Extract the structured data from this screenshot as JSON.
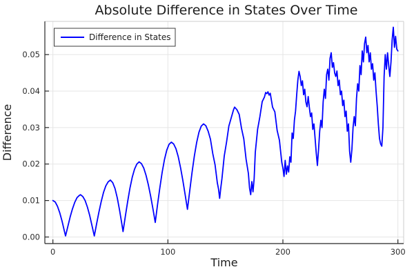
{
  "chart_data": {
    "type": "line",
    "title": "Absolute Difference in States Over Time",
    "xlabel": "Time",
    "ylabel": "Difference",
    "x_ticks": [
      0,
      100,
      200,
      300
    ],
    "y_ticks": [
      0.0,
      0.01,
      0.02,
      0.03,
      0.04,
      0.05
    ],
    "y_tick_labels": [
      "0.00",
      "0.01",
      "0.02",
      "0.03",
      "0.04",
      "0.05"
    ],
    "xlim": [
      -7,
      305
    ],
    "ylim": [
      -0.0018,
      0.0591
    ],
    "grid": true,
    "legend_position": "top-left",
    "colors": {
      "series": "#0000ff",
      "grid": "#e5e5e5",
      "axis": "#262626",
      "frame_light": "#cccccc",
      "background": "#ffffff",
      "legend_border": "#3c3c3c"
    },
    "series": [
      {
        "name": "Difference in States",
        "color": "#0000ff",
        "points": [
          [
            0,
            0.01
          ],
          [
            2,
            0.0096
          ],
          [
            4,
            0.0084
          ],
          [
            6,
            0.0066
          ],
          [
            8,
            0.0043
          ],
          [
            10,
            0.0016
          ],
          [
            11,
            0.0003
          ],
          [
            13,
            0.0029
          ],
          [
            15,
            0.0055
          ],
          [
            17,
            0.0077
          ],
          [
            19,
            0.0095
          ],
          [
            21,
            0.0108
          ],
          [
            23,
            0.0114
          ],
          [
            24,
            0.0116
          ],
          [
            26,
            0.0111
          ],
          [
            28,
            0.01
          ],
          [
            30,
            0.0082
          ],
          [
            32,
            0.0059
          ],
          [
            34,
            0.0031
          ],
          [
            36,
            0.0003
          ],
          [
            38,
            0.0036
          ],
          [
            40,
            0.0068
          ],
          [
            42,
            0.0097
          ],
          [
            44,
            0.0122
          ],
          [
            46,
            0.014
          ],
          [
            48,
            0.0151
          ],
          [
            50,
            0.0156
          ],
          [
            52,
            0.0149
          ],
          [
            54,
            0.0133
          ],
          [
            56,
            0.0107
          ],
          [
            58,
            0.0073
          ],
          [
            60,
            0.0035
          ],
          [
            61,
            0.0015
          ],
          [
            63,
            0.0057
          ],
          [
            65,
            0.0097
          ],
          [
            67,
            0.0134
          ],
          [
            69,
            0.0164
          ],
          [
            71,
            0.0186
          ],
          [
            73,
            0.02
          ],
          [
            75,
            0.0206
          ],
          [
            77,
            0.0201
          ],
          [
            79,
            0.0189
          ],
          [
            81,
            0.0169
          ],
          [
            83,
            0.0143
          ],
          [
            85,
            0.0112
          ],
          [
            87,
            0.0077
          ],
          [
            89,
            0.004
          ],
          [
            91,
            0.0089
          ],
          [
            93,
            0.0135
          ],
          [
            95,
            0.0177
          ],
          [
            97,
            0.0212
          ],
          [
            99,
            0.0238
          ],
          [
            101,
            0.0254
          ],
          [
            103,
            0.026
          ],
          [
            105,
            0.0255
          ],
          [
            107,
            0.0242
          ],
          [
            109,
            0.022
          ],
          [
            111,
            0.019
          ],
          [
            113,
            0.0155
          ],
          [
            115,
            0.0116
          ],
          [
            117,
            0.0076
          ],
          [
            119,
            0.0127
          ],
          [
            121,
            0.0177
          ],
          [
            123,
            0.0222
          ],
          [
            125,
            0.0259
          ],
          [
            127,
            0.0287
          ],
          [
            129,
            0.0304
          ],
          [
            131,
            0.031
          ],
          [
            133,
            0.0305
          ],
          [
            135,
            0.029
          ],
          [
            137,
            0.0268
          ],
          [
            139,
            0.0229
          ],
          [
            141,
            0.0198
          ],
          [
            143,
            0.0148
          ],
          [
            144,
            0.0132
          ],
          [
            145,
            0.0106
          ],
          [
            146,
            0.0135
          ],
          [
            147,
            0.016
          ],
          [
            149,
            0.0222
          ],
          [
            151,
            0.026
          ],
          [
            153,
            0.0304
          ],
          [
            155,
            0.0326
          ],
          [
            157,
            0.0348
          ],
          [
            158,
            0.0356
          ],
          [
            160,
            0.0349
          ],
          [
            162,
            0.0336
          ],
          [
            164,
            0.0298
          ],
          [
            166,
            0.0269
          ],
          [
            168,
            0.0213
          ],
          [
            170,
            0.0174
          ],
          [
            171,
            0.0134
          ],
          [
            172,
            0.0116
          ],
          [
            173,
            0.0152
          ],
          [
            174,
            0.0124
          ],
          [
            175,
            0.016
          ],
          [
            176,
            0.0232
          ],
          [
            178,
            0.0295
          ],
          [
            180,
            0.033
          ],
          [
            182,
            0.0371
          ],
          [
            184,
            0.0384
          ],
          [
            185,
            0.0396
          ],
          [
            186,
            0.0393
          ],
          [
            187,
            0.0398
          ],
          [
            188,
            0.0389
          ],
          [
            189,
            0.0394
          ],
          [
            191,
            0.0356
          ],
          [
            193,
            0.0343
          ],
          [
            195,
            0.0292
          ],
          [
            197,
            0.0265
          ],
          [
            199,
            0.0205
          ],
          [
            200,
            0.0189
          ],
          [
            201,
            0.0166
          ],
          [
            202,
            0.021
          ],
          [
            203,
            0.0172
          ],
          [
            204,
            0.0195
          ],
          [
            205,
            0.0178
          ],
          [
            206,
            0.022
          ],
          [
            207,
            0.0205
          ],
          [
            208,
            0.0285
          ],
          [
            209,
            0.027
          ],
          [
            210,
            0.032
          ],
          [
            211,
            0.0345
          ],
          [
            212,
            0.039
          ],
          [
            213,
            0.043
          ],
          [
            214,
            0.0454
          ],
          [
            215,
            0.044
          ],
          [
            216,
            0.0415
          ],
          [
            217,
            0.0428
          ],
          [
            218,
            0.039
          ],
          [
            219,
            0.0405
          ],
          [
            220,
            0.037
          ],
          [
            221,
            0.0357
          ],
          [
            222,
            0.0385
          ],
          [
            223,
            0.0355
          ],
          [
            224,
            0.033
          ],
          [
            225,
            0.034
          ],
          [
            226,
            0.0295
          ],
          [
            227,
            0.031
          ],
          [
            228,
            0.027
          ],
          [
            229,
            0.023
          ],
          [
            230,
            0.0196
          ],
          [
            231,
            0.024
          ],
          [
            232,
            0.029
          ],
          [
            233,
            0.032
          ],
          [
            234,
            0.03
          ],
          [
            235,
            0.037
          ],
          [
            236,
            0.0405
          ],
          [
            237,
            0.038
          ],
          [
            238,
            0.0445
          ],
          [
            239,
            0.046
          ],
          [
            240,
            0.043
          ],
          [
            241,
            0.049
          ],
          [
            242,
            0.0505
          ],
          [
            243,
            0.0465
          ],
          [
            244,
            0.0478
          ],
          [
            245,
            0.045
          ],
          [
            246,
            0.044
          ],
          [
            247,
            0.0455
          ],
          [
            248,
            0.0415
          ],
          [
            249,
            0.043
          ],
          [
            250,
            0.039
          ],
          [
            251,
            0.04
          ],
          [
            252,
            0.036
          ],
          [
            253,
            0.0375
          ],
          [
            254,
            0.033
          ],
          [
            255,
            0.0345
          ],
          [
            256,
            0.029
          ],
          [
            257,
            0.031
          ],
          [
            258,
            0.0235
          ],
          [
            259,
            0.0205
          ],
          [
            260,
            0.024
          ],
          [
            261,
            0.03
          ],
          [
            262,
            0.033
          ],
          [
            263,
            0.0305
          ],
          [
            264,
            0.038
          ],
          [
            265,
            0.042
          ],
          [
            266,
            0.04
          ],
          [
            267,
            0.047
          ],
          [
            268,
            0.0445
          ],
          [
            269,
            0.051
          ],
          [
            270,
            0.048
          ],
          [
            271,
            0.053
          ],
          [
            272,
            0.0548
          ],
          [
            273,
            0.0505
          ],
          [
            274,
            0.0525
          ],
          [
            275,
            0.048
          ],
          [
            276,
            0.0505
          ],
          [
            277,
            0.046
          ],
          [
            278,
            0.0475
          ],
          [
            279,
            0.043
          ],
          [
            280,
            0.045
          ],
          [
            281,
            0.04
          ],
          [
            282,
            0.036
          ],
          [
            283,
            0.031
          ],
          [
            284,
            0.027
          ],
          [
            285,
            0.0255
          ],
          [
            286,
            0.0249
          ],
          [
            287,
            0.03
          ],
          [
            288,
            0.044
          ],
          [
            289,
            0.05
          ],
          [
            290,
            0.046
          ],
          [
            291,
            0.0505
          ],
          [
            292,
            0.047
          ],
          [
            293,
            0.044
          ],
          [
            294,
            0.048
          ],
          [
            295,
            0.054
          ],
          [
            296,
            0.0575
          ],
          [
            297,
            0.052
          ],
          [
            298,
            0.055
          ],
          [
            299,
            0.0515
          ],
          [
            300,
            0.051
          ]
        ]
      }
    ]
  }
}
